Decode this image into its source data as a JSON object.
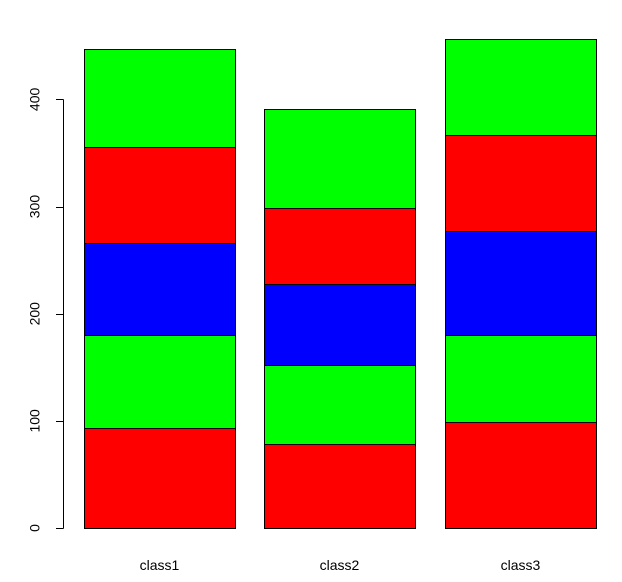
{
  "chart_data": {
    "type": "bar",
    "stacked": true,
    "categories": [
      "class1",
      "class2",
      "class3"
    ],
    "series": [
      {
        "color": "#ff0000",
        "values": [
          93,
          78,
          99
        ]
      },
      {
        "color": "#00ff00",
        "values": [
          87,
          74,
          81
        ]
      },
      {
        "color": "#0000ff",
        "values": [
          86,
          76,
          97
        ]
      },
      {
        "color": "#ff0000",
        "values": [
          90,
          71,
          90
        ]
      },
      {
        "color": "#00ff00",
        "values": [
          91,
          92,
          89
        ]
      }
    ],
    "y_ticks": [
      0,
      100,
      200,
      300,
      400
    ],
    "ylim": [
      0,
      456
    ],
    "title": "",
    "xlabel": "",
    "ylabel": "",
    "grid": false,
    "legend": false
  }
}
